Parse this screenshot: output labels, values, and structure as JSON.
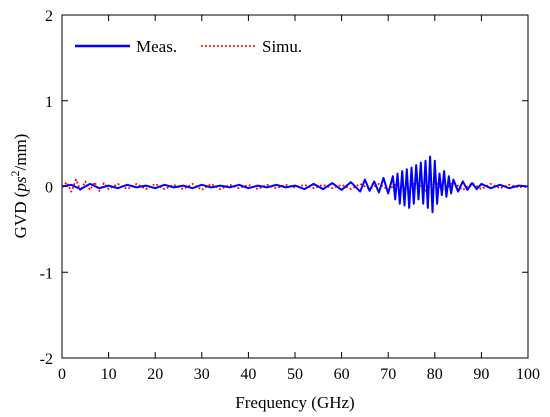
{
  "chart_data": {
    "type": "line",
    "xlabel": "Frequency (GHz)",
    "ylabel": {
      "prefix": "GVD (",
      "var": "ps",
      "sup": "2",
      "suffix": "/mm)"
    },
    "xlim": [
      0,
      100
    ],
    "ylim": [
      -2,
      2
    ],
    "xticks": [
      0,
      10,
      20,
      30,
      40,
      50,
      60,
      70,
      80,
      90,
      100
    ],
    "yticks": [
      -2,
      -1,
      0,
      1,
      2
    ],
    "grid": false,
    "legend_position": "top-left",
    "series": [
      {
        "name": "Meas.",
        "color": "#0000ff",
        "style": "solid",
        "x": [
          0,
          2,
          4,
          6,
          8,
          10,
          12,
          14,
          16,
          18,
          20,
          22,
          24,
          26,
          28,
          30,
          32,
          34,
          36,
          38,
          40,
          42,
          44,
          46,
          48,
          50,
          52,
          54,
          56,
          58,
          60,
          62,
          64,
          65,
          66,
          67,
          68,
          69,
          70,
          71,
          71.5,
          72,
          72.5,
          73,
          73.5,
          74,
          74.5,
          75,
          75.5,
          76,
          76.5,
          77,
          77.5,
          78,
          78.5,
          79,
          79.5,
          80,
          80.5,
          81,
          81.5,
          82,
          82.5,
          83,
          83.5,
          84,
          85,
          86,
          87,
          88,
          89,
          90,
          92,
          94,
          96,
          98,
          100
        ],
        "y": [
          0,
          0.02,
          -0.03,
          0.03,
          -0.02,
          0.01,
          -0.02,
          0.02,
          -0.01,
          0.01,
          -0.02,
          0.02,
          -0.01,
          0.01,
          -0.02,
          0.02,
          -0.01,
          0.01,
          -0.01,
          0.02,
          -0.02,
          0.01,
          -0.01,
          0.02,
          -0.01,
          0.01,
          -0.03,
          0.03,
          -0.03,
          0.04,
          -0.04,
          0.05,
          -0.06,
          0.08,
          -0.05,
          0.06,
          -0.07,
          0.1,
          -0.08,
          0.12,
          -0.15,
          0.15,
          -0.2,
          0.18,
          -0.22,
          0.2,
          -0.25,
          0.22,
          -0.2,
          0.25,
          -0.15,
          0.28,
          -0.2,
          0.3,
          -0.25,
          0.35,
          -0.3,
          0.3,
          -0.2,
          0.15,
          -0.1,
          0.18,
          -0.12,
          0.12,
          -0.08,
          0.08,
          -0.06,
          0.06,
          -0.04,
          0.04,
          -0.03,
          0.03,
          -0.02,
          0.02,
          -0.02,
          0.01,
          0
        ]
      },
      {
        "name": "Simu.",
        "color": "#ff0000",
        "style": "dotted",
        "x": [
          0,
          1,
          2,
          3,
          4,
          5,
          6,
          7,
          8,
          9,
          10,
          12,
          14,
          16,
          18,
          20,
          22,
          24,
          26,
          28,
          30,
          32,
          34,
          36,
          38,
          40,
          42,
          44,
          46,
          48,
          50,
          52,
          54,
          56,
          58,
          60,
          62,
          64,
          66,
          68,
          70,
          72,
          74,
          76,
          78,
          80,
          82,
          84,
          86,
          88,
          90,
          92,
          94,
          96,
          98,
          100
        ],
        "y": [
          0,
          0.05,
          -0.06,
          0.08,
          -0.05,
          0.06,
          -0.04,
          0.05,
          -0.05,
          0.04,
          -0.03,
          0.03,
          -0.03,
          0.03,
          -0.03,
          0.03,
          -0.03,
          0.02,
          -0.03,
          0.03,
          -0.04,
          0.03,
          -0.03,
          0.02,
          -0.02,
          0.02,
          -0.03,
          0.02,
          -0.02,
          0.02,
          -0.01,
          0.02,
          -0.02,
          0.02,
          -0.02,
          0.02,
          -0.03,
          0.03,
          -0.03,
          0.03,
          -0.04,
          0.04,
          -0.04,
          0.05,
          -0.05,
          0.06,
          -0.05,
          0.05,
          -0.04,
          0.04,
          -0.03,
          0.03,
          -0.02,
          0.02,
          -0.01,
          0
        ]
      }
    ]
  }
}
